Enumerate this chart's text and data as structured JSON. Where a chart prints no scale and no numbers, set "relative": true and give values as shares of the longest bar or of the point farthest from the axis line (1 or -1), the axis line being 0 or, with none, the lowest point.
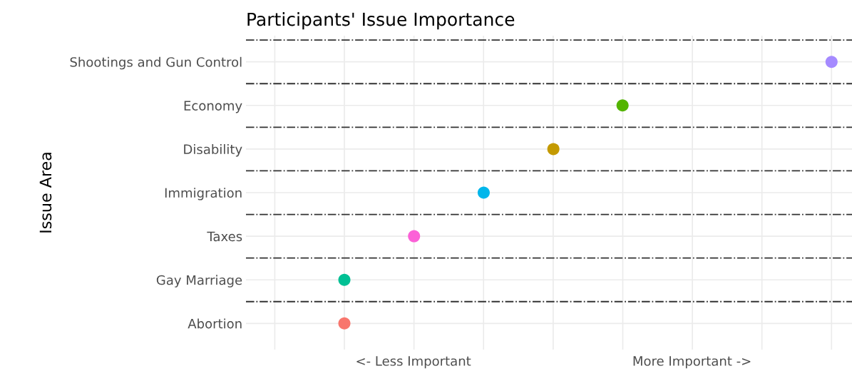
{
  "chart_data": {
    "type": "scatter",
    "title": "Participants' Issue Importance",
    "ylabel": "Issue Area",
    "orientation": "horizontal",
    "relative": true,
    "categories": [
      "Shootings and Gun Control",
      "Economy",
      "Disability",
      "Immigration",
      "Taxes",
      "Gay Marriage",
      "Abortion"
    ],
    "values": [
      1,
      0.571,
      0.429,
      0.286,
      0.143,
      0,
      0
    ],
    "colors": [
      "#a58aff",
      "#53b400",
      "#c49a00",
      "#00b6eb",
      "#fb61d7",
      "#00c094",
      "#f8766d"
    ],
    "annotations": [
      "<- Less Important",
      "More Important ->"
    ],
    "grid": true,
    "marker": "circle",
    "legend": false
  }
}
